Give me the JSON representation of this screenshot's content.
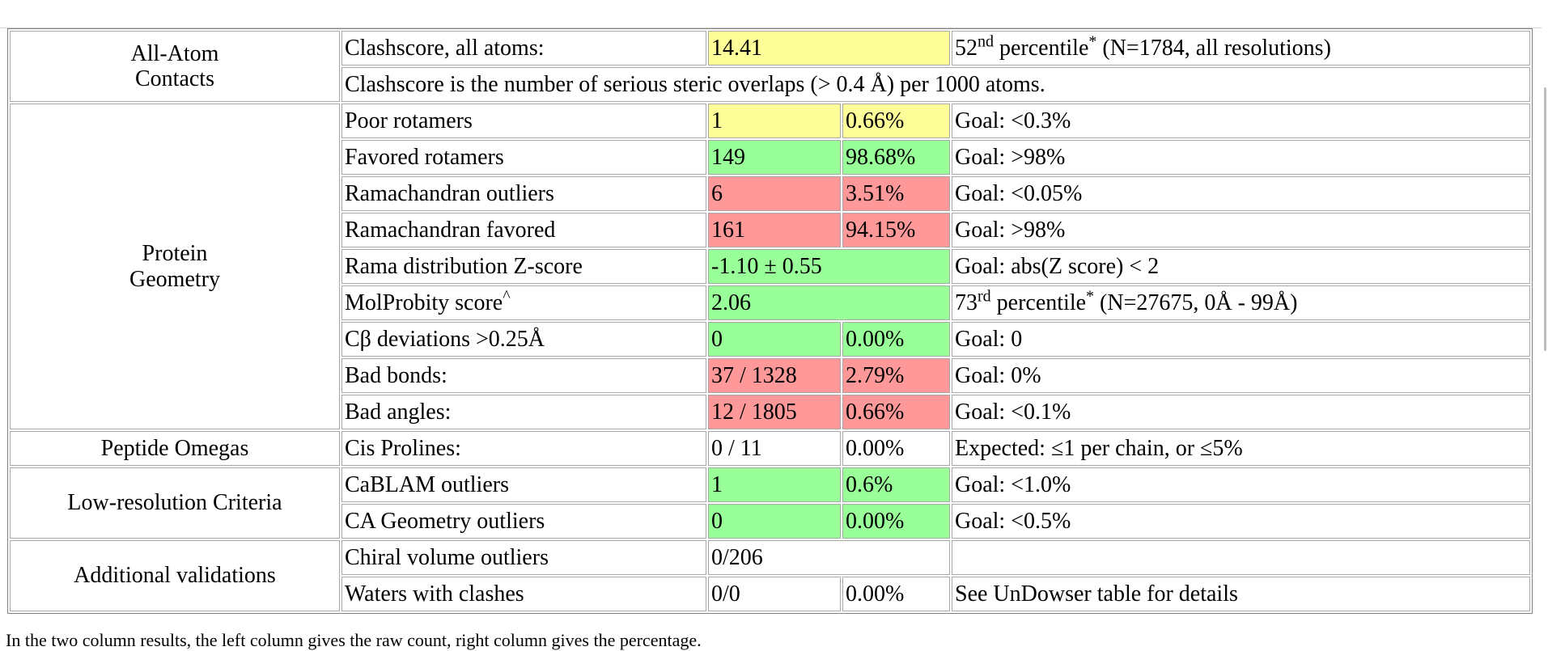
{
  "categories": {
    "all_atom": [
      "All-Atom",
      "Contacts"
    ],
    "protein_geometry": [
      "Protein",
      "Geometry"
    ],
    "peptide_omegas": "Peptide Omegas",
    "low_res": "Low-resolution Criteria",
    "additional": "Additional validations"
  },
  "clashscore": {
    "label": "Clashscore, all atoms:",
    "value": "14.41",
    "pct_num": "52",
    "pct_sup": "nd",
    "pct_text": " percentile",
    "star": "*",
    "pct_detail": " (N=1784, all resolutions)",
    "note": "Clashscore is the number of serious steric overlaps (> 0.4 Å) per 1000 atoms."
  },
  "rows": {
    "poor_rotamers": {
      "label": "Poor rotamers",
      "count": "1",
      "percent": "0.66%",
      "goal": "Goal: <0.3%"
    },
    "favored_rotamers": {
      "label": "Favored rotamers",
      "count": "149",
      "percent": "98.68%",
      "goal": "Goal: >98%"
    },
    "rama_outliers": {
      "label": "Ramachandran outliers",
      "count": "6",
      "percent": "3.51%",
      "goal": "Goal: <0.05%"
    },
    "rama_favored": {
      "label": "Ramachandran favored",
      "count": "161",
      "percent": "94.15%",
      "goal": "Goal: >98%"
    },
    "rama_z": {
      "label": "Rama distribution Z-score",
      "value": "-1.10 ± 0.55",
      "goal": "Goal: abs(Z score) < 2"
    },
    "molprobity": {
      "label": "MolProbity score",
      "caret": "^",
      "value": "2.06",
      "pct_num": "73",
      "pct_sup": "rd",
      "pct_text": " percentile",
      "star": "*",
      "pct_detail": " (N=27675, 0Å - 99Å)"
    },
    "cbeta": {
      "label": "Cβ deviations >0.25Å",
      "count": "0",
      "percent": "0.00%",
      "goal": "Goal: 0"
    },
    "bad_bonds": {
      "label": "Bad bonds:",
      "count": "37 / 1328",
      "percent": "2.79%",
      "goal": "Goal: 0%"
    },
    "bad_angles": {
      "label": "Bad angles:",
      "count": "12 / 1805",
      "percent": "0.66%",
      "goal": "Goal: <0.1%"
    },
    "cis_prolines": {
      "label": "Cis Prolines:",
      "count": "0 / 11",
      "percent": "0.00%",
      "goal": "Expected: ≤1 per chain, or ≤5%"
    },
    "cablam": {
      "label": "CaBLAM outliers",
      "count": "1",
      "percent": "0.6%",
      "goal": "Goal: <1.0%"
    },
    "ca_geometry": {
      "label": "CA Geometry outliers",
      "count": "0",
      "percent": "0.00%",
      "goal": "Goal: <0.5%"
    },
    "chiral": {
      "label": "Chiral volume outliers",
      "value": "0/206",
      "goal": ""
    },
    "waters": {
      "label": "Waters with clashes",
      "count": "0/0",
      "percent": "0.00%",
      "goal": "See UnDowser table for details"
    }
  },
  "footnote": "In the two column results, the left column gives the raw count, right column gives the percentage.",
  "colors": {
    "yellow": "#ffff99",
    "green": "#99ff99",
    "red": "#ff9999"
  }
}
